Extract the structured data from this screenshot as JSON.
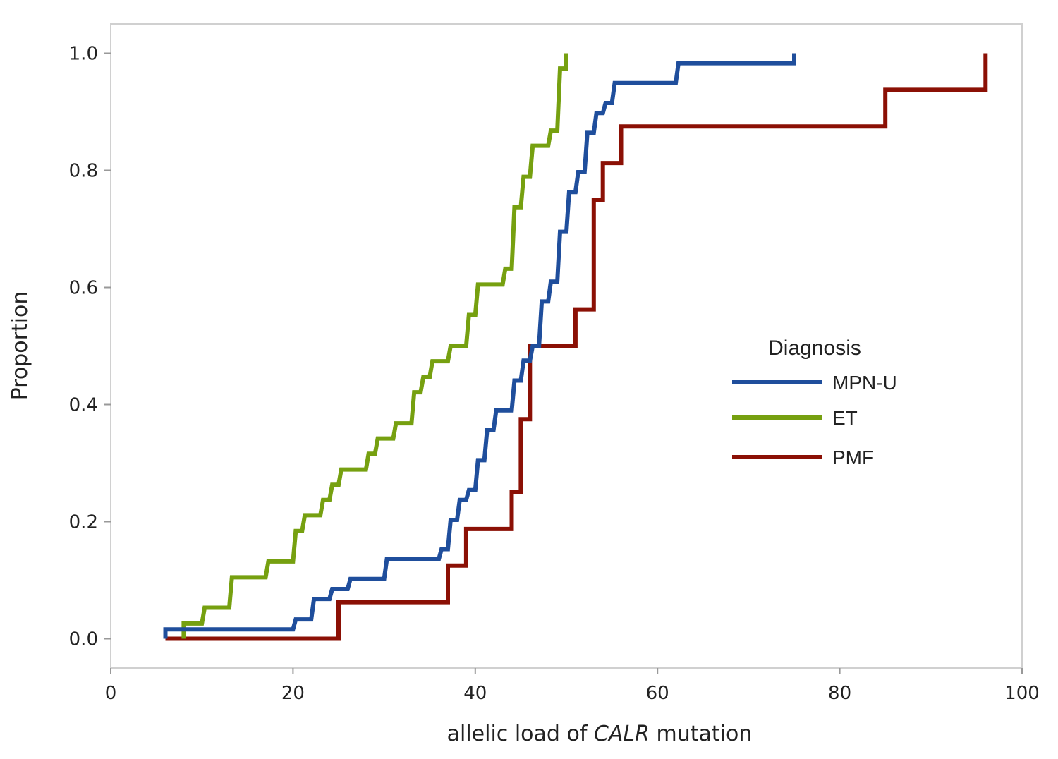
{
  "chart_data": {
    "type": "line",
    "step": true,
    "title": "",
    "xlabel": {
      "prefix": "allelic load of ",
      "italic": "CALR",
      "suffix": " mutation"
    },
    "ylabel": "Proportion",
    "xlim": [
      0,
      100
    ],
    "ylim": [
      -0.05,
      1.05
    ],
    "xticks": [
      0,
      20,
      40,
      60,
      80,
      100
    ],
    "xtick_labels": [
      "0",
      "20",
      "40",
      "60",
      "80",
      "100"
    ],
    "yticks": [
      0,
      0.2,
      0.4,
      0.6,
      0.8,
      1.0
    ],
    "ytick_labels": [
      "0.0",
      "0.2",
      "0.4",
      "0.6",
      "0.8",
      "1.0"
    ],
    "grid": false,
    "legend": {
      "title": "Diagnosis",
      "position": "center-right"
    },
    "series": [
      {
        "name": "MPN-U",
        "color": "#1f4e9c",
        "x": [
          6,
          6,
          20,
          20.3,
          22,
          22.3,
          24,
          24.3,
          26,
          26.3,
          30,
          30.3,
          36,
          36.3,
          37,
          37.3,
          38,
          38.3,
          39,
          39.3,
          40,
          40.3,
          41,
          41.3,
          42,
          42.3,
          44,
          44.3,
          45,
          45.3,
          46,
          46.3,
          47,
          47.3,
          48,
          48.3,
          49,
          49.3,
          50,
          50.3,
          51,
          51.3,
          52,
          52.3,
          53,
          53.3,
          54,
          54.3,
          55,
          55.3,
          62,
          62.3,
          75,
          75
        ],
        "y": [
          0,
          0.016,
          0.016,
          0.033,
          0.033,
          0.068,
          0.068,
          0.085,
          0.085,
          0.102,
          0.102,
          0.136,
          0.136,
          0.153,
          0.153,
          0.203,
          0.203,
          0.237,
          0.237,
          0.254,
          0.254,
          0.305,
          0.305,
          0.356,
          0.356,
          0.39,
          0.39,
          0.441,
          0.441,
          0.475,
          0.475,
          0.5,
          0.5,
          0.576,
          0.576,
          0.61,
          0.61,
          0.695,
          0.695,
          0.763,
          0.763,
          0.797,
          0.797,
          0.864,
          0.864,
          0.898,
          0.898,
          0.915,
          0.915,
          0.949,
          0.949,
          0.983,
          0.983,
          1.0
        ]
      },
      {
        "name": "ET",
        "color": "#76a010",
        "x": [
          8,
          8,
          10,
          10.3,
          13,
          13.3,
          17,
          17.3,
          20,
          20.3,
          21,
          21.3,
          23,
          23.3,
          24,
          24.3,
          25,
          25.3,
          28,
          28.3,
          29,
          29.3,
          31,
          31.3,
          33,
          33.3,
          34,
          34.3,
          35,
          35.3,
          37,
          37.3,
          39,
          39.3,
          40,
          40.3,
          43,
          43.3,
          44,
          44.3,
          45,
          45.3,
          46,
          46.3,
          48,
          48.3,
          49,
          49.3,
          50,
          50
        ],
        "y": [
          0,
          0.026,
          0.026,
          0.053,
          0.053,
          0.105,
          0.105,
          0.132,
          0.132,
          0.184,
          0.184,
          0.211,
          0.211,
          0.237,
          0.237,
          0.263,
          0.263,
          0.289,
          0.289,
          0.316,
          0.316,
          0.342,
          0.342,
          0.368,
          0.368,
          0.421,
          0.421,
          0.447,
          0.447,
          0.474,
          0.474,
          0.5,
          0.5,
          0.553,
          0.553,
          0.605,
          0.605,
          0.632,
          0.632,
          0.737,
          0.737,
          0.789,
          0.789,
          0.842,
          0.842,
          0.868,
          0.868,
          0.974,
          0.974,
          1.0
        ]
      },
      {
        "name": "PMF",
        "color": "#8b1005",
        "x": [
          6,
          25,
          25,
          37,
          37,
          39,
          39,
          44,
          44,
          45,
          45,
          46,
          46,
          51,
          51,
          53,
          53,
          54,
          54,
          56,
          56,
          85,
          85,
          96,
          96
        ],
        "y": [
          0,
          0,
          0.0625,
          0.0625,
          0.125,
          0.125,
          0.1875,
          0.1875,
          0.25,
          0.25,
          0.375,
          0.375,
          0.5,
          0.5,
          0.5625,
          0.5625,
          0.75,
          0.75,
          0.8125,
          0.8125,
          0.875,
          0.875,
          0.9375,
          0.9375,
          1.0
        ]
      }
    ]
  }
}
